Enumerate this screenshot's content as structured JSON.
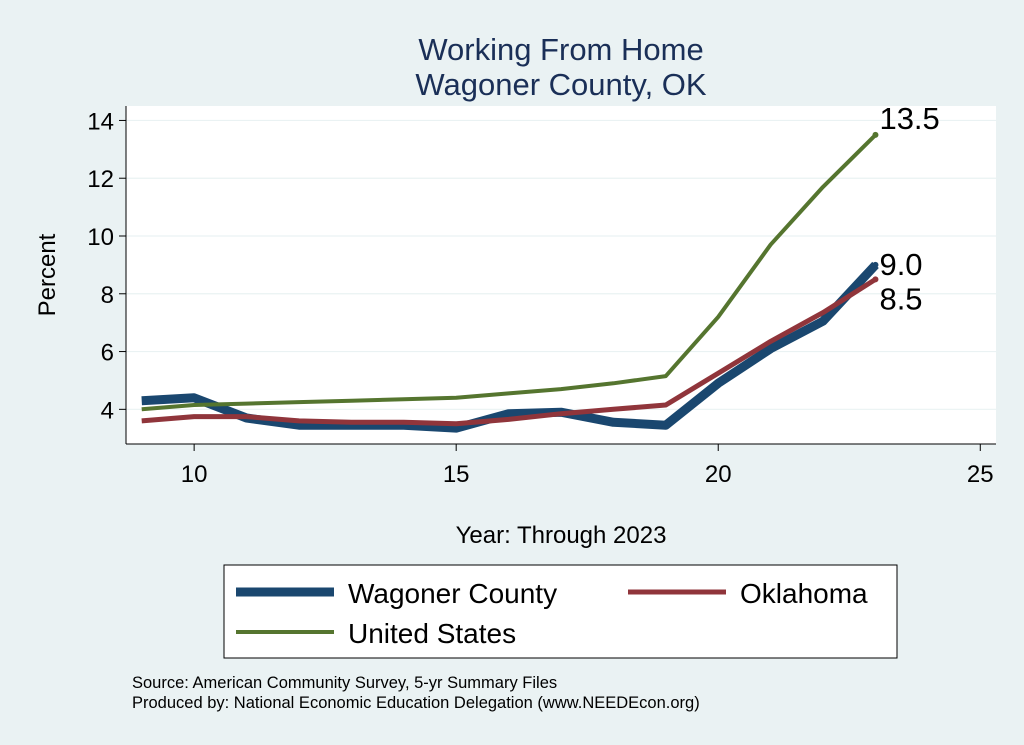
{
  "chart_data": {
    "type": "line",
    "title": "Working From Home",
    "subtitle": "Wagoner County, OK",
    "xlabel": "Year: Through 2023",
    "ylabel": "Percent",
    "xlim": [
      8.7,
      25.3
    ],
    "ylim": [
      2.8,
      14.5
    ],
    "xticks": [
      10,
      15,
      20,
      25
    ],
    "yticks": [
      4,
      6,
      8,
      10,
      12,
      14
    ],
    "grid": true,
    "legend_position": "bottom",
    "series": [
      {
        "name": "Wagoner County",
        "color": "#1a476f",
        "x": [
          9,
          10,
          11,
          12,
          13,
          14,
          15,
          16,
          17,
          18,
          19,
          20,
          21,
          22,
          23
        ],
        "y": [
          4.3,
          4.4,
          3.7,
          3.45,
          3.45,
          3.45,
          3.35,
          3.85,
          3.9,
          3.55,
          3.45,
          4.9,
          6.1,
          7.05,
          9.0
        ]
      },
      {
        "name": "Oklahoma",
        "color": "#90353b",
        "x": [
          9,
          10,
          11,
          12,
          13,
          14,
          15,
          16,
          17,
          18,
          19,
          20,
          21,
          22,
          23
        ],
        "y": [
          3.6,
          3.75,
          3.75,
          3.6,
          3.55,
          3.55,
          3.5,
          3.65,
          3.85,
          4.0,
          4.15,
          5.25,
          6.35,
          7.35,
          8.5
        ]
      },
      {
        "name": "United States",
        "color": "#55752f",
        "x": [
          9,
          10,
          11,
          12,
          13,
          14,
          15,
          16,
          17,
          18,
          19,
          20,
          21,
          22,
          23
        ],
        "y": [
          4.0,
          4.15,
          4.2,
          4.25,
          4.3,
          4.35,
          4.4,
          4.55,
          4.7,
          4.9,
          5.15,
          7.2,
          9.7,
          11.7,
          13.5
        ]
      }
    ],
    "end_labels": [
      {
        "series": "United States",
        "text": "13.5"
      },
      {
        "series": "Wagoner County",
        "text": "9.0"
      },
      {
        "series": "Oklahoma",
        "text": "8.5"
      }
    ]
  },
  "notes": {
    "source": "Source: American Community Survey, 5-yr Summary Files",
    "producer": "Produced by: National Economic Education Delegation (www.NEEDEcon.org)"
  }
}
